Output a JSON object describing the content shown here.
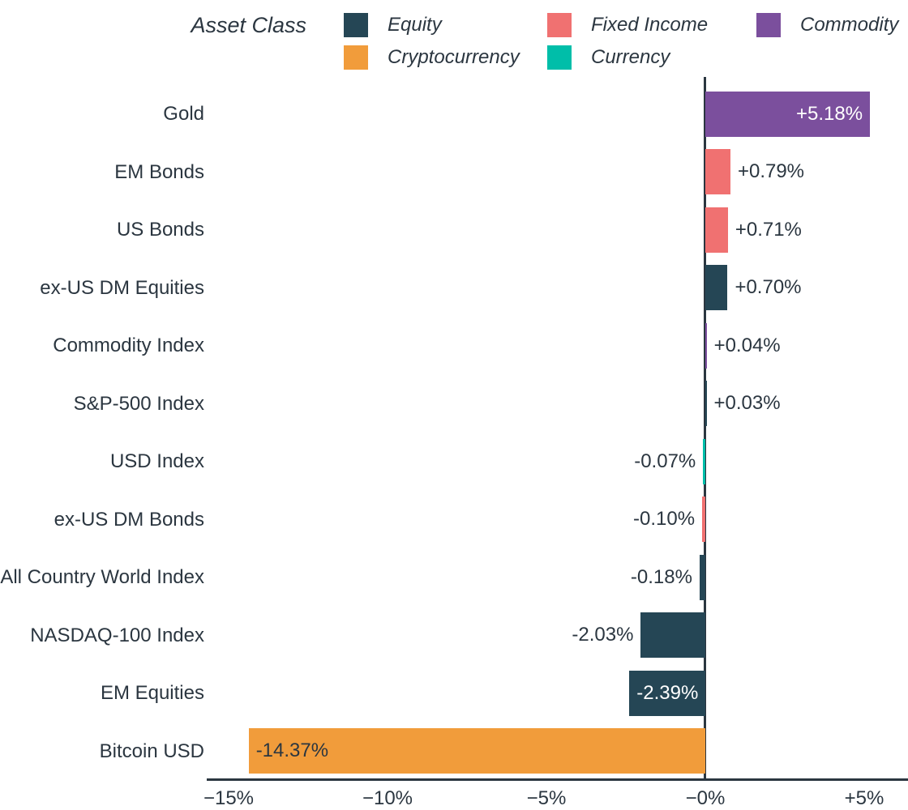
{
  "legend": {
    "title": "Asset Class",
    "entries": [
      "Equity",
      "Cryptocurrency",
      "Fixed Income",
      "Currency",
      "Commodity"
    ]
  },
  "chart_data": {
    "type": "bar",
    "orientation": "horizontal",
    "title": "",
    "xlabel": "",
    "ylabel": "",
    "unit": "%",
    "grid": false,
    "legend_position": "top",
    "xlim": [
      -15.7,
      6.4
    ],
    "colors": {
      "Equity": "#254655",
      "Fixed Income": "#F07171",
      "Commodity": "#7B4F9D",
      "Cryptocurrency": "#F19C3B",
      "Currency": "#00BEA9"
    },
    "text_color": "#2B3640",
    "inside_label_light_color": "#FFFFFF",
    "rows": [
      {
        "label": "Gold",
        "asset_class": "Commodity",
        "value": 5.18,
        "display": "+5.18%"
      },
      {
        "label": "EM Bonds",
        "asset_class": "Fixed Income",
        "value": 0.79,
        "display": "+0.79%"
      },
      {
        "label": "US Bonds",
        "asset_class": "Fixed Income",
        "value": 0.71,
        "display": "+0.71%"
      },
      {
        "label": "ex-US DM Equities",
        "asset_class": "Equity",
        "value": 0.7,
        "display": "+0.70%"
      },
      {
        "label": "Commodity Index",
        "asset_class": "Commodity",
        "value": 0.04,
        "display": "+0.04%"
      },
      {
        "label": "S&P-500 Index",
        "asset_class": "Equity",
        "value": 0.03,
        "display": "+0.03%"
      },
      {
        "label": "USD Index",
        "asset_class": "Currency",
        "value": -0.07,
        "display": "-0.07%"
      },
      {
        "label": "ex-US DM Bonds",
        "asset_class": "Fixed Income",
        "value": -0.1,
        "display": "-0.10%"
      },
      {
        "label": "All Country World Index",
        "asset_class": "Equity",
        "value": -0.18,
        "display": "-0.18%"
      },
      {
        "label": "NASDAQ-100 Index",
        "asset_class": "Equity",
        "value": -2.03,
        "display": "-2.03%"
      },
      {
        "label": "EM Equities",
        "asset_class": "Equity",
        "value": -2.39,
        "display": "-2.39%"
      },
      {
        "label": "Bitcoin USD",
        "asset_class": "Cryptocurrency",
        "value": -14.37,
        "display": "-14.37%"
      }
    ],
    "x_ticks": [
      {
        "value": -15,
        "label": "−15%"
      },
      {
        "value": -10,
        "label": "−10%"
      },
      {
        "value": -5,
        "label": "−5%"
      },
      {
        "value": 0,
        "label": "−0%"
      },
      {
        "value": 5,
        "label": "+5%"
      }
    ]
  }
}
